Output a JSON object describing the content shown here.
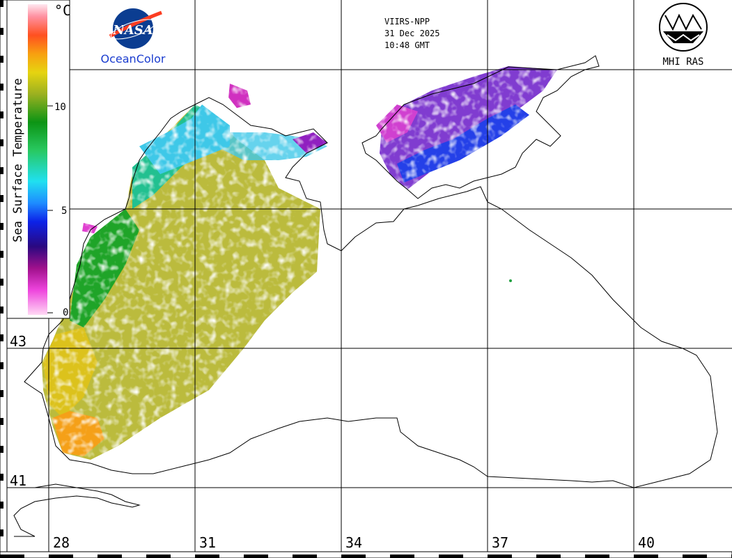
{
  "header": {
    "satellite": "VIIRS-NPP",
    "date": "31 Dec 2025",
    "time": "10:48 GMT"
  },
  "logos": {
    "left_wordmark": "NASA",
    "left_caption": "OceanColor",
    "right_caption": "MHI RAS"
  },
  "colorbar": {
    "title": "Sea Surface Temperature",
    "unit": "°C",
    "ticks": [
      {
        "label": "10",
        "value": 10
      },
      {
        "label": "5",
        "value": 5
      },
      {
        "label": "0",
        "value": 0
      }
    ],
    "min": 0,
    "max": 15
  },
  "graticule": {
    "longitudes": [
      {
        "label": "28",
        "value": 28
      },
      {
        "label": "31",
        "value": 31
      },
      {
        "label": "34",
        "value": 34
      },
      {
        "label": "37",
        "value": 37
      },
      {
        "label": "40",
        "value": 40
      }
    ],
    "latitudes": [
      {
        "label": "43",
        "value": 43
      },
      {
        "label": "41",
        "value": 41
      }
    ]
  },
  "colors": {
    "land": "#ffffff",
    "coast": "#000000",
    "grid": "#000000",
    "nasa_blue": "#0b3d91",
    "nasa_red": "#fc3d21",
    "caption_blue": "#1a3ccf"
  }
}
